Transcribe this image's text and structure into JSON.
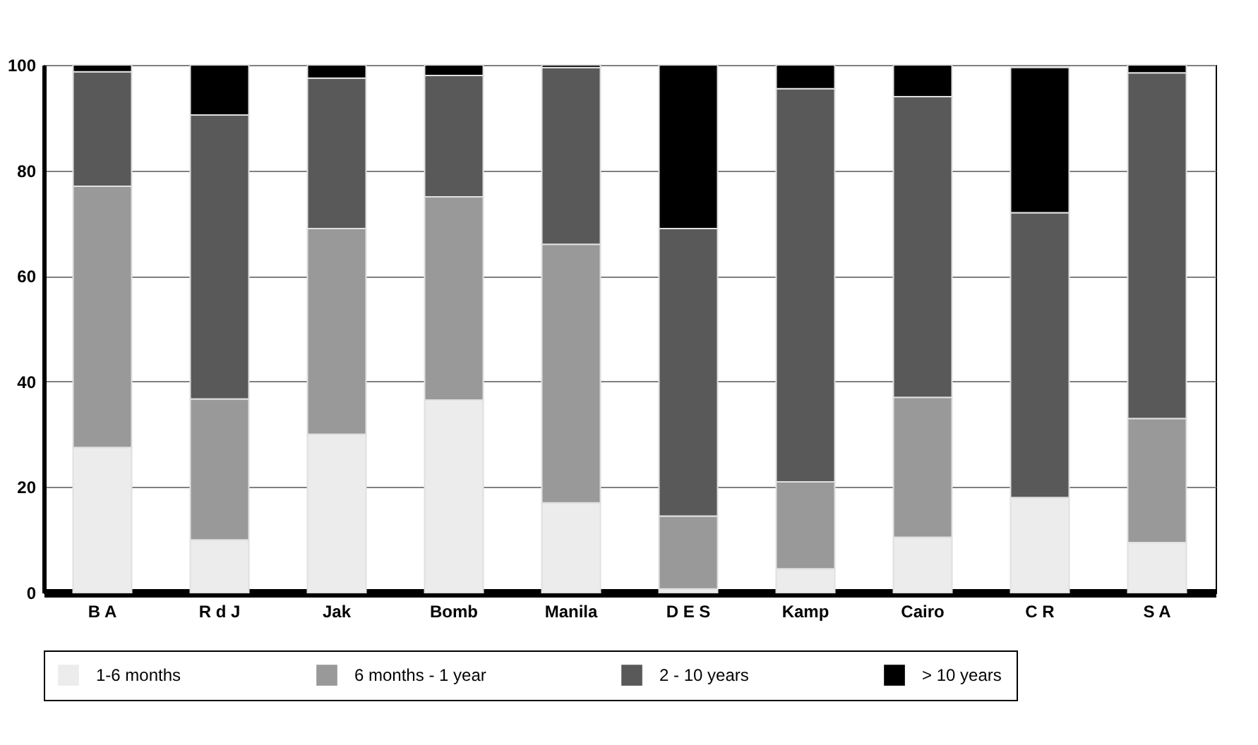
{
  "chart_data": {
    "type": "bar",
    "stacked": true,
    "categories": [
      "B A",
      "R d J",
      "Jak",
      "Bomb",
      "Manila",
      "D E S",
      "Kamp",
      "Cairo",
      "C R",
      "S A"
    ],
    "series": [
      {
        "name": "1-6 months",
        "color": "#ececec",
        "values": [
          27.5,
          10,
          30,
          36.5,
          17,
          0.7,
          4.5,
          10.5,
          18,
          9.5
        ]
      },
      {
        "name": "6 months - 1 year",
        "color": "#999999",
        "values": [
          49.5,
          26.7,
          39,
          38.5,
          49,
          13.8,
          16.5,
          26.5,
          0,
          23.5
        ]
      },
      {
        "name": "2 - 10 years",
        "color": "#595959",
        "values": [
          21.7,
          53.8,
          28.5,
          23,
          33.5,
          54.5,
          74.5,
          57,
          54,
          65.5
        ]
      },
      {
        "name": "> 10 years",
        "color": "#000000",
        "values": [
          1.3,
          9.5,
          2.5,
          2,
          0.5,
          31,
          4.5,
          6,
          27.5,
          1.5
        ]
      }
    ],
    "ylim": [
      0,
      100
    ],
    "yticks": [
      0,
      20,
      40,
      60,
      80,
      100
    ],
    "grid": "y",
    "legend": "bottom"
  }
}
